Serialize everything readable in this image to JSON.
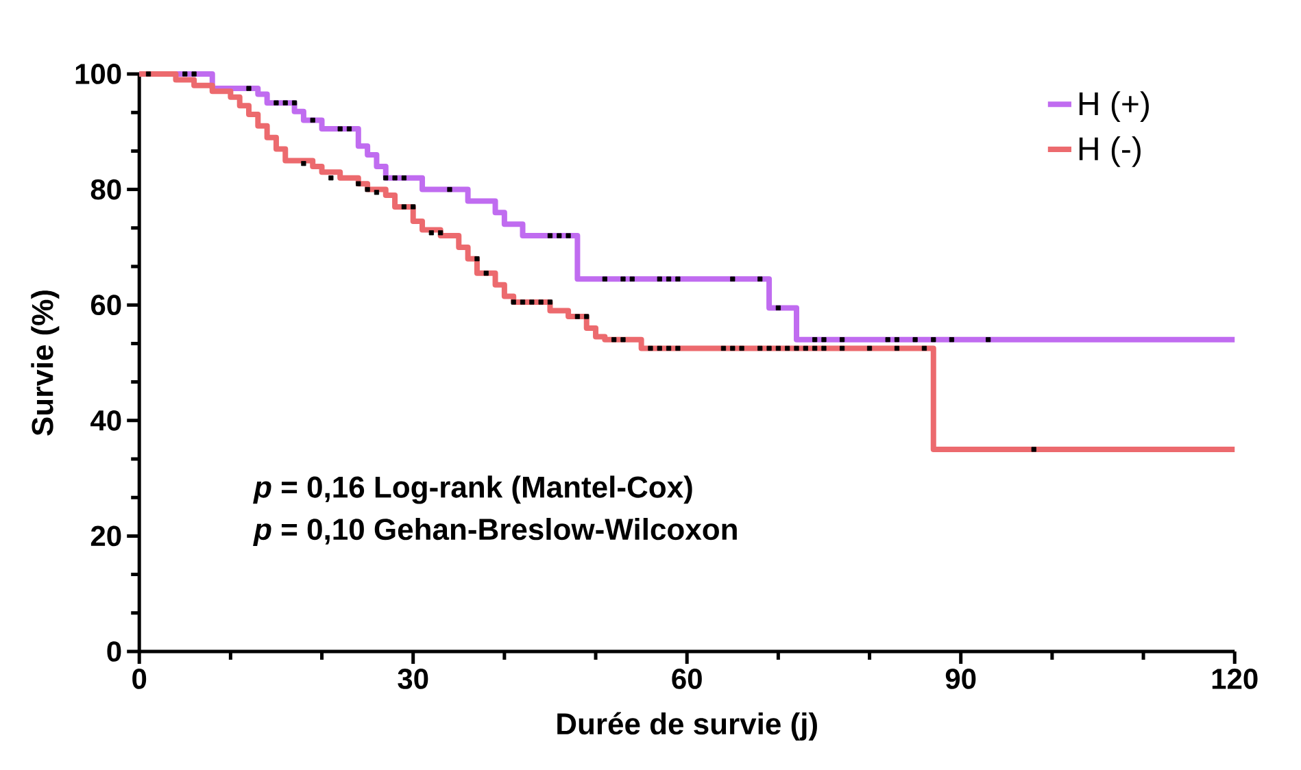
{
  "chart_data": {
    "type": "step",
    "xlabel": "Durée de survie (j)",
    "ylabel": "Survie (%)",
    "xlim": [
      0,
      120
    ],
    "ylim": [
      0,
      100
    ],
    "xticks": [
      0,
      30,
      60,
      90,
      120
    ],
    "yticks": [
      0,
      20,
      40,
      60,
      80,
      100
    ],
    "legend": "top right",
    "grid": false,
    "annotations": [
      "*p* = 0,16 Log-rank (Mantel-Cox)",
      "*p* = 0,10 Gehan-Breslow-Wilcoxon"
    ],
    "series": [
      {
        "name": "H (+)",
        "color": "#c06cf0",
        "x": [
          0,
          8,
          13,
          14,
          17,
          18,
          20,
          24,
          25,
          26,
          27,
          31,
          36,
          39,
          40,
          42,
          48,
          69,
          72,
          120
        ],
        "values": [
          100,
          97.5,
          96.5,
          95,
          93.5,
          92,
          90.5,
          87.5,
          86,
          84,
          82,
          80,
          78,
          76,
          74,
          72,
          64.5,
          59.5,
          54,
          54
        ]
      },
      {
        "name": "H (-)",
        "color": "#ec6a6e",
        "x": [
          0,
          4,
          6,
          8,
          10,
          11,
          12,
          13,
          14,
          15,
          16,
          19,
          20,
          22,
          24,
          25,
          27,
          28,
          30,
          31,
          33,
          35,
          36,
          37,
          39,
          40,
          41,
          45,
          47,
          49,
          50,
          51,
          55,
          87,
          120
        ],
        "values": [
          100,
          99,
          98,
          97,
          96,
          94.5,
          93,
          91,
          89,
          87,
          85,
          84,
          83,
          82,
          81,
          80,
          79,
          77,
          74.5,
          73,
          72,
          70,
          68,
          65.5,
          63.5,
          61.5,
          60.5,
          59,
          58,
          56,
          54.5,
          54,
          52.5,
          35,
          35
        ]
      },
      {
        "type": "scatter",
        "marker": "square",
        "color": "#000000",
        "x": [
          1,
          5,
          6,
          12,
          15,
          16,
          17,
          19,
          22,
          23,
          27,
          28,
          29,
          34,
          45,
          46,
          47,
          51,
          53,
          54,
          57,
          58,
          59,
          65,
          68,
          70,
          74,
          75,
          77,
          82,
          83,
          85,
          87,
          89,
          93
        ],
        "values": [
          100,
          100,
          100,
          97.5,
          95,
          95,
          95,
          92,
          90.5,
          90.5,
          82,
          82,
          82,
          80,
          72,
          72,
          72,
          64.5,
          64.5,
          64.5,
          64.5,
          64.5,
          64.5,
          64.5,
          64.5,
          59.5,
          54,
          54,
          54,
          54,
          54,
          54,
          54,
          54,
          54
        ]
      },
      {
        "type": "scatter",
        "marker": "square",
        "color": "#000000",
        "x": [
          18,
          21,
          24,
          25,
          26,
          29,
          30,
          32,
          33,
          37,
          38,
          41,
          42,
          43,
          44,
          45,
          48,
          49,
          52,
          53,
          56,
          57,
          58,
          59,
          64,
          65,
          66,
          68,
          69,
          70,
          71,
          72,
          73,
          74,
          75,
          77,
          80,
          83,
          86,
          98
        ],
        "values": [
          84.5,
          82,
          81,
          80,
          79.5,
          77,
          77,
          72.5,
          72.5,
          68,
          65.5,
          60.5,
          60.5,
          60.5,
          60.5,
          60.5,
          58,
          58,
          54,
          54,
          52.5,
          52.5,
          52.5,
          52.5,
          52.5,
          52.5,
          52.5,
          52.5,
          52.5,
          52.5,
          52.5,
          52.5,
          52.5,
          52.5,
          52.5,
          52.5,
          52.5,
          52.5,
          52.5,
          35
        ]
      }
    ]
  }
}
